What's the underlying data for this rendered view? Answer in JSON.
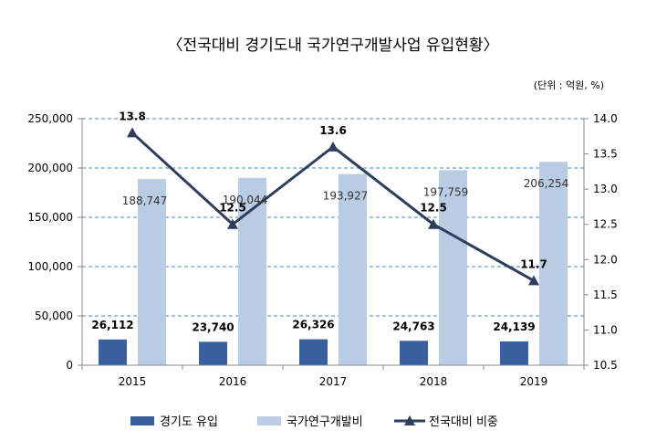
{
  "chart_data": {
    "type": "bar",
    "title": "〈전국대비 경기도내 국가연구개발사업 유입현황〉",
    "unit_note": "(단위 : 억원, %)",
    "categories": [
      "2015",
      "2016",
      "2017",
      "2018",
      "2019"
    ],
    "series": [
      {
        "name": "경기도 유입",
        "type": "bar",
        "axis": "left",
        "color": "#3a5f9e",
        "values": [
          26112,
          23740,
          26326,
          24763,
          24139
        ],
        "labels": [
          "26,112",
          "23,740",
          "26,326",
          "24,763",
          "24,139"
        ]
      },
      {
        "name": "국가연구개발비",
        "type": "bar",
        "axis": "left",
        "color": "#b8cce4",
        "values": [
          188747,
          190044,
          193927,
          197759,
          206254
        ],
        "labels": [
          "188,747",
          "190,044",
          "193,927",
          "197,759",
          "206,254"
        ]
      },
      {
        "name": "전국대비 비중",
        "type": "line",
        "axis": "right",
        "color": "#2e3e5c",
        "values": [
          13.8,
          12.5,
          13.6,
          12.5,
          11.7
        ],
        "labels": [
          "13.8",
          "12.5",
          "13.6",
          "12.5",
          "11.7"
        ]
      }
    ],
    "y_left": {
      "min": 0,
      "max": 250000,
      "ticks": [
        0,
        50000,
        100000,
        150000,
        200000,
        250000
      ],
      "tick_labels": [
        "0",
        "50,000",
        "100,000",
        "150,000",
        "200,000",
        "250,000"
      ]
    },
    "y_right": {
      "min": 10.5,
      "max": 14.0,
      "ticks": [
        10.5,
        11.0,
        11.5,
        12.0,
        12.5,
        13.0,
        13.5,
        14.0
      ],
      "tick_labels": [
        "10.5",
        "11.0",
        "11.5",
        "12.0",
        "12.5",
        "13.0",
        "13.5",
        "14.0"
      ]
    },
    "grid": "dashed-horizontal",
    "legend_position": "bottom"
  }
}
